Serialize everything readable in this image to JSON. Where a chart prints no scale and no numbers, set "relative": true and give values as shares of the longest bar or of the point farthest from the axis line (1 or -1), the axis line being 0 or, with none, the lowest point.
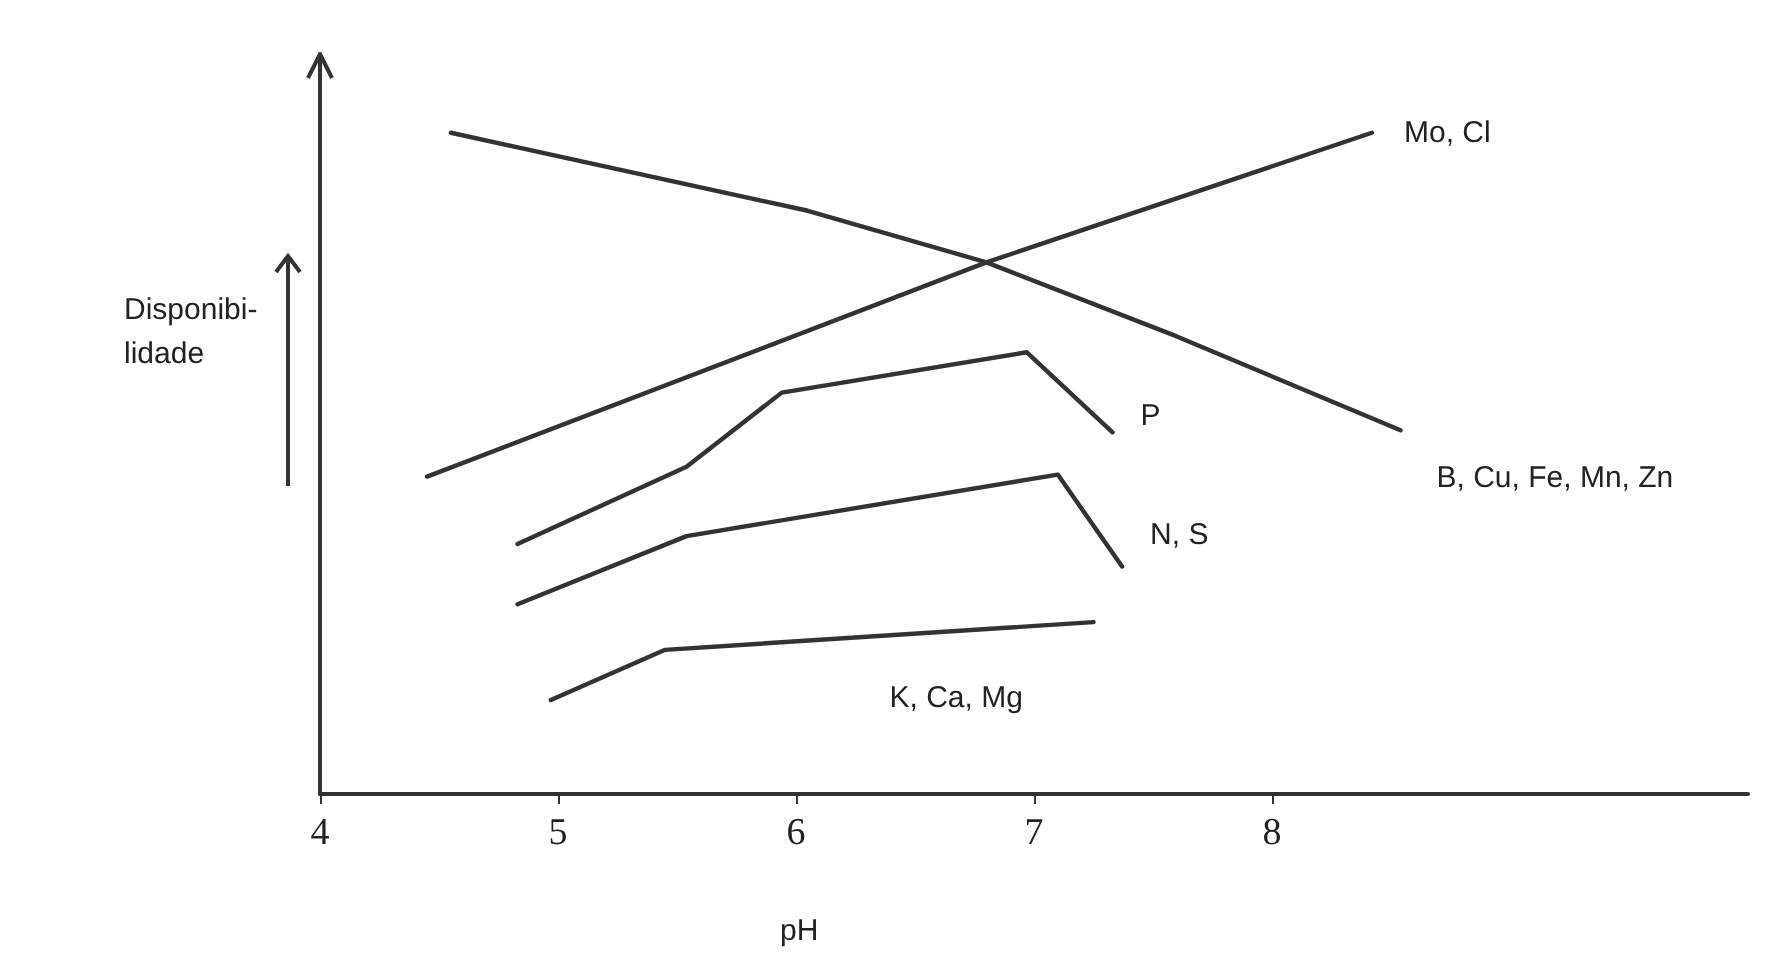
{
  "chart_data": {
    "type": "line",
    "relative": true,
    "xlabel": "pH",
    "ylabel": "Disponibi-\nlidade",
    "xlim": [
      4,
      10
    ],
    "xticks": [
      4,
      5,
      6,
      7,
      8
    ],
    "grid": false,
    "legend": false,
    "marker": "none",
    "line_style": "solid",
    "series": [
      {
        "name": "Mo, Cl",
        "color": "#333333",
        "x": [
          4.45,
          6.8,
          8.42
        ],
        "values": [
          0.48,
          0.804,
          1.0
        ]
      },
      {
        "name": "B, Cu, Fe, Mn, Zn",
        "color": "#333333",
        "x": [
          4.55,
          6.05,
          6.8,
          7.6,
          8.54
        ],
        "values": [
          1.0,
          0.882,
          0.804,
          0.692,
          0.55
        ]
      },
      {
        "name": "P",
        "color": "#333333",
        "x": [
          4.83,
          5.54,
          5.94,
          6.97,
          7.33
        ],
        "values": [
          0.378,
          0.495,
          0.607,
          0.668,
          0.547
        ]
      },
      {
        "name": "N, S",
        "color": "#333333",
        "x": [
          4.83,
          5.54,
          7.1,
          7.37
        ],
        "values": [
          0.287,
          0.39,
          0.483,
          0.344
        ]
      },
      {
        "name": "K, Ca, Mg",
        "color": "#333333",
        "x": [
          4.97,
          5.45,
          7.25
        ],
        "values": [
          0.142,
          0.218,
          0.26
        ]
      }
    ]
  }
}
